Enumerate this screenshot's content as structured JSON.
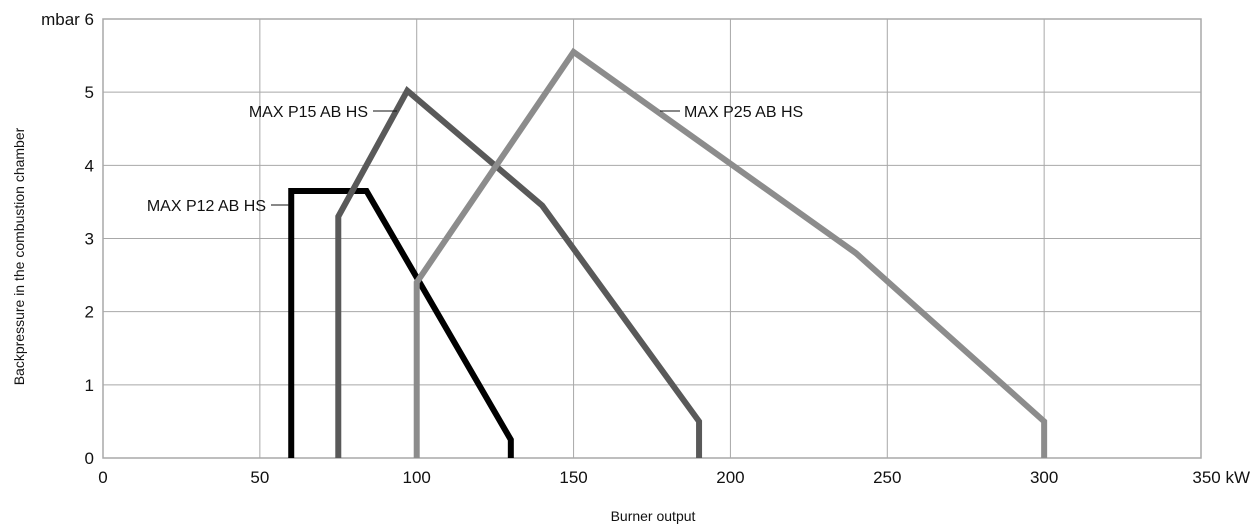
{
  "chart_data": {
    "type": "line",
    "xlabel": "Burner output",
    "ylabel": "Backpressure in the combustion chamber",
    "x_unit": "kW",
    "y_unit": "mbar",
    "xlim": [
      0,
      350
    ],
    "ylim": [
      0,
      6
    ],
    "x_ticks": [
      "0",
      "50",
      "100",
      "150",
      "200",
      "250",
      "300"
    ],
    "x_last_tick": "350 kW",
    "y_ticks": [
      "0",
      "1",
      "2",
      "3",
      "4",
      "5"
    ],
    "y_last_tick": "mbar 6",
    "grid": true,
    "legend": "none",
    "series": [
      {
        "name": "MAX P12 AB HS",
        "color": "#000000",
        "points": [
          [
            60,
            0
          ],
          [
            60,
            3.65
          ],
          [
            84,
            3.65
          ],
          [
            130,
            0.25
          ],
          [
            130,
            0
          ]
        ]
      },
      {
        "name": "MAX P15 AB HS",
        "color": "#595959",
        "points": [
          [
            75,
            0
          ],
          [
            75,
            3.3
          ],
          [
            97,
            5.02
          ],
          [
            140,
            3.45
          ],
          [
            190,
            0.5
          ],
          [
            190,
            0
          ]
        ]
      },
      {
        "name": "MAX P25 AB HS",
        "color": "#8c8c8c",
        "points": [
          [
            100,
            0
          ],
          [
            100,
            2.4
          ],
          [
            150,
            5.55
          ],
          [
            240,
            2.8
          ],
          [
            300,
            0.5
          ],
          [
            300,
            0
          ]
        ]
      }
    ]
  }
}
